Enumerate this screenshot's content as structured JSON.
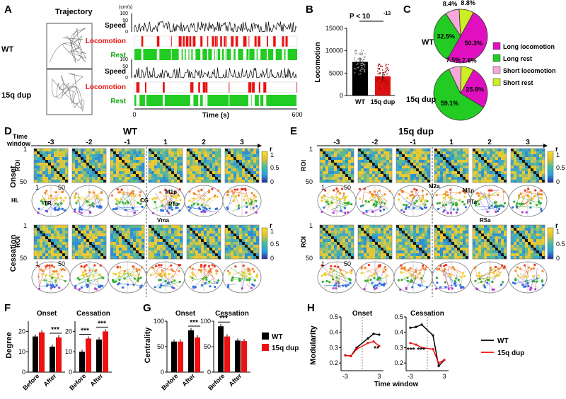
{
  "panelA": {
    "letter": "A",
    "traj_label": "Trajectory",
    "speed_unit": "(cm/s)",
    "rows": [
      {
        "genotype": "WT",
        "speed_label": "Speed",
        "loco_label": "Locomotion",
        "rest_label": "Rest",
        "yticks": [
          "100",
          "50",
          "0"
        ]
      },
      {
        "genotype": "15q dup",
        "speed_label": "Speed",
        "loco_label": "Locomotion",
        "rest_label": "Rest",
        "yticks": [
          "100",
          "50",
          "0"
        ]
      }
    ],
    "xticks": [
      "0",
      "600"
    ],
    "xlabel": "Time (s)",
    "colors": {
      "speed": "#000000",
      "locomotion": "#ee1111",
      "rest": "#22cc22"
    }
  },
  "panelB": {
    "letter": "B",
    "pvalue": "P < 10",
    "pexp": "-13",
    "ylabel": "Locomotion",
    "yticks": [
      "15000",
      "10000",
      "5000",
      "0"
    ],
    "chart_data": {
      "type": "bar",
      "categories": [
        "WT",
        "15q dup"
      ],
      "values": [
        7500,
        4300
      ],
      "ylim": [
        0,
        15000
      ],
      "colors": [
        "#000000",
        "#dd1111"
      ]
    }
  },
  "panelC": {
    "letter": "C",
    "legend": [
      "Long locomotion",
      "Long rest",
      "Short locomotion",
      "Short rest"
    ],
    "colors": [
      "#e010c0",
      "#22cc22",
      "#f7a8d8",
      "#ccee22"
    ],
    "pies": [
      {
        "genotype": "WT",
        "values": [
          50.3,
          32.5,
          8.4,
          8.8
        ],
        "labels": [
          "50.3%",
          "32.5%",
          "8.4%",
          "8.8%"
        ]
      },
      {
        "genotype": "15q dup",
        "values": [
          25.8,
          59.1,
          7.5,
          7.6
        ],
        "labels": [
          "25.8%",
          "59.1%",
          "7.5%",
          "7.6%"
        ]
      }
    ]
  },
  "panelD": {
    "letter": "D",
    "title": "WT",
    "time_window": "Time\nwindow",
    "windows": [
      "-3",
      "-2",
      "-1",
      "1",
      "2",
      "3"
    ],
    "row_labels": [
      "Onset",
      "Cessation"
    ],
    "roi_label": "ROI",
    "roi_ticks": [
      "1",
      "50"
    ],
    "cbar_label": "r",
    "cbar_ticks": [
      "1",
      "0.5",
      "0"
    ],
    "brain_labels": [
      "HL",
      "TR",
      "CG",
      "M1p",
      "PTa",
      "Vma"
    ]
  },
  "panelE": {
    "letter": "E",
    "title": "15q dup",
    "windows": [
      "-3",
      "-2",
      "-1",
      "1",
      "2",
      "3"
    ],
    "roi_label": "ROI",
    "roi_ticks": [
      "1",
      "50"
    ],
    "cbar_label": "r",
    "cbar_ticks": [
      "1",
      "0.5",
      "0"
    ],
    "brain_labels": [
      "M2a",
      "M1p",
      "PTa",
      "RSa"
    ]
  },
  "panelF": {
    "letter": "F",
    "ylabel": "Degree",
    "yticks": [
      "20",
      "10",
      "0"
    ],
    "ylim": [
      0,
      25
    ],
    "subplots": [
      {
        "title": "Onset",
        "categories": [
          "Before",
          "After"
        ],
        "series": [
          {
            "name": "WT",
            "values": [
              17.5,
              12.5
            ]
          },
          {
            "name": "15q dup",
            "values": [
              19.5,
              17.0
            ]
          }
        ],
        "sig": [
          "",
          "***"
        ]
      },
      {
        "title": "Cessation",
        "categories": [
          "Before",
          "After"
        ],
        "series": [
          {
            "name": "WT",
            "values": [
              10,
              16
            ]
          },
          {
            "name": "15q dup",
            "values": [
              16.5,
              20
            ]
          }
        ],
        "sig": [
          "***",
          "***"
        ]
      }
    ]
  },
  "panelG": {
    "letter": "G",
    "ylabel": "Centrality",
    "yticks": [
      "100",
      "50",
      "0"
    ],
    "ylim": [
      0,
      100
    ],
    "subplots": [
      {
        "title": "Onset",
        "categories": [
          "Before",
          "After"
        ],
        "series": [
          {
            "name": "WT",
            "values": [
              60,
              82
            ]
          },
          {
            "name": "15q dup",
            "values": [
              60,
              68
            ]
          }
        ],
        "sig": [
          "",
          "***"
        ]
      },
      {
        "title": "Cessation",
        "categories": [
          "Before",
          "After"
        ],
        "series": [
          {
            "name": "WT",
            "values": [
              90,
              62
            ]
          },
          {
            "name": "15q dup",
            "values": [
              70,
              61
            ]
          }
        ],
        "sig": [
          "***",
          ""
        ]
      }
    ],
    "legend": [
      "WT",
      "15q dup"
    ]
  },
  "panelH": {
    "letter": "H",
    "ylabel": "Modularity",
    "xlabel": "Time window",
    "yticks": [
      "0.5",
      "0.4",
      "0.3",
      "0.2"
    ],
    "ylim": [
      0.15,
      0.5
    ],
    "xticks": [
      "-3",
      "3"
    ],
    "subplots": [
      {
        "title": "Onset",
        "x": [
          -3,
          -2,
          -1,
          1,
          2,
          3
        ],
        "series": [
          {
            "name": "WT",
            "values": [
              0.25,
              0.245,
              0.3,
              0.36,
              0.39,
              0.385
            ]
          },
          {
            "name": "15q dup",
            "values": [
              0.25,
              0.245,
              0.29,
              0.33,
              0.34,
              0.31
            ]
          }
        ],
        "sig": "**"
      },
      {
        "title": "Cessation",
        "x": [
          -3,
          -2,
          -1,
          1,
          2,
          3
        ],
        "series": [
          {
            "name": "WT",
            "values": [
              0.43,
              0.435,
              0.45,
              0.38,
              0.18,
              0.22
            ]
          },
          {
            "name": "15q dup",
            "values": [
              0.33,
              0.32,
              0.3,
              0.29,
              0.2,
              0.22
            ]
          }
        ],
        "sig": "***  ***"
      }
    ],
    "legend": [
      "WT",
      "15q dup"
    ]
  },
  "series_colors": {
    "WT": "#000000",
    "15q dup": "#ee1111"
  }
}
